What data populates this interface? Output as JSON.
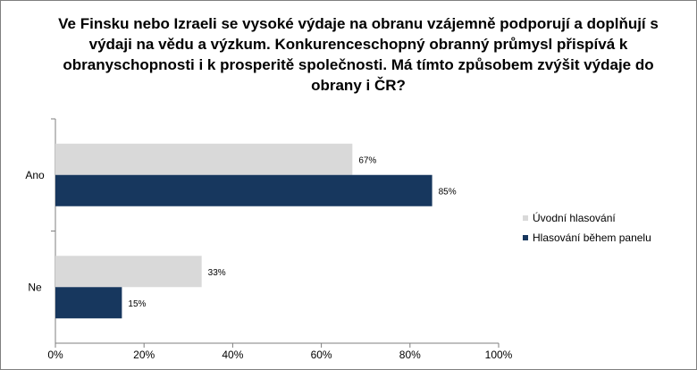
{
  "chart_data": {
    "type": "bar",
    "orientation": "horizontal",
    "title": "Ve Finsku nebo Izraeli se vysoké výdaje na obranu vzájemně podporují a doplňují s výdaji na vědu a výzkum. Konkurenceschopný obranný průmysl přispívá k obranyschopnosti i k prosperitě společnosti. Má tímto způsobem zvýšit výdaje do obrany i ČR?",
    "categories": [
      "Ano",
      "Ne"
    ],
    "series": [
      {
        "name": "Úvodní hlasování",
        "values": [
          67,
          33
        ],
        "labels": [
          "67%",
          "33%"
        ],
        "color": "#d9d9d9"
      },
      {
        "name": "Hlasování během panelu",
        "values": [
          85,
          15
        ],
        "labels": [
          "85%",
          "15%"
        ],
        "color": "#17375e"
      }
    ],
    "xlim": [
      0,
      100
    ],
    "x_ticks": [
      "0%",
      "20%",
      "40%",
      "60%",
      "80%",
      "100%"
    ],
    "grid": false,
    "legend": "right"
  }
}
